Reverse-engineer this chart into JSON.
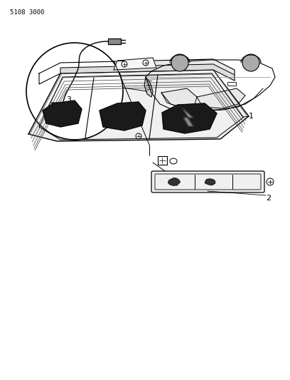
{
  "title": "5108 3000",
  "background_color": "#ffffff",
  "line_color": "#000000",
  "fig_width": 4.08,
  "fig_height": 5.33,
  "dpi": 100
}
